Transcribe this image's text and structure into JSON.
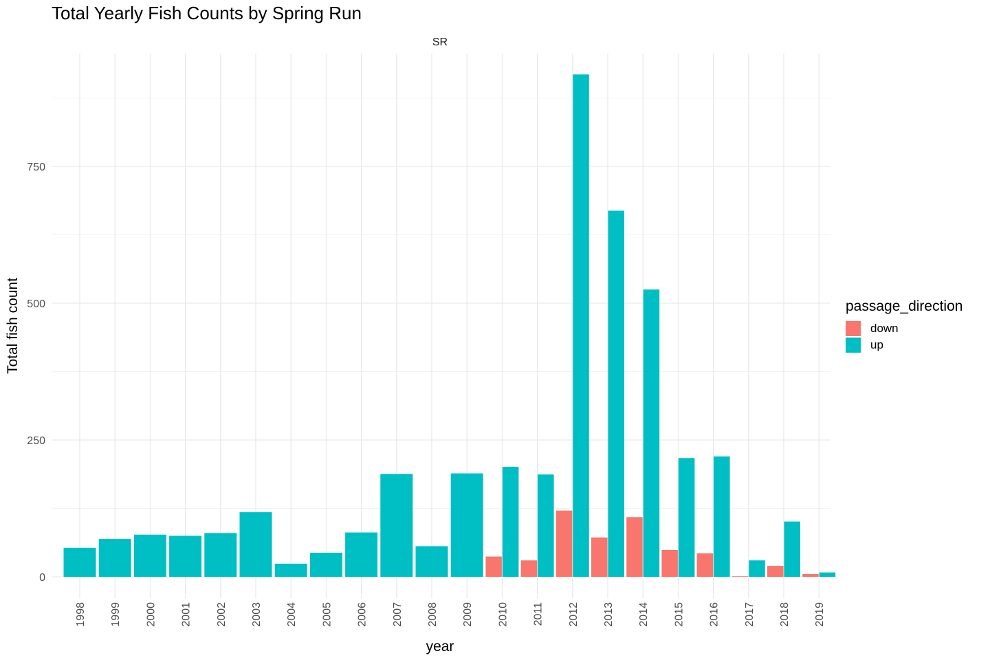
{
  "chart_data": {
    "type": "bar",
    "title": "Total Yearly Fish Counts by Spring Run",
    "facet_label": "SR",
    "xlabel": "year",
    "ylabel": "Total fish count",
    "ylim": [
      0,
      920
    ],
    "yticks": [
      0,
      250,
      500,
      750
    ],
    "grid": true,
    "legend": {
      "title": "passage_direction",
      "position": "right"
    },
    "categories": [
      "1998",
      "1999",
      "2000",
      "2001",
      "2002",
      "2003",
      "2004",
      "2005",
      "2006",
      "2007",
      "2008",
      "2009",
      "2010",
      "2011",
      "2012",
      "2013",
      "2014",
      "2015",
      "2016",
      "2017",
      "2018",
      "2019"
    ],
    "series": [
      {
        "name": "down",
        "color": "#F8766D",
        "values": [
          null,
          null,
          null,
          null,
          null,
          null,
          null,
          null,
          null,
          null,
          null,
          null,
          37,
          30,
          121,
          72,
          109,
          49,
          43,
          1,
          20,
          5
        ]
      },
      {
        "name": "up",
        "color": "#00BFC4",
        "values": [
          53,
          69,
          77,
          75,
          80,
          118,
          24,
          44,
          81,
          188,
          56,
          189,
          201,
          187,
          918,
          669,
          525,
          217,
          220,
          30,
          101,
          8
        ]
      }
    ]
  }
}
